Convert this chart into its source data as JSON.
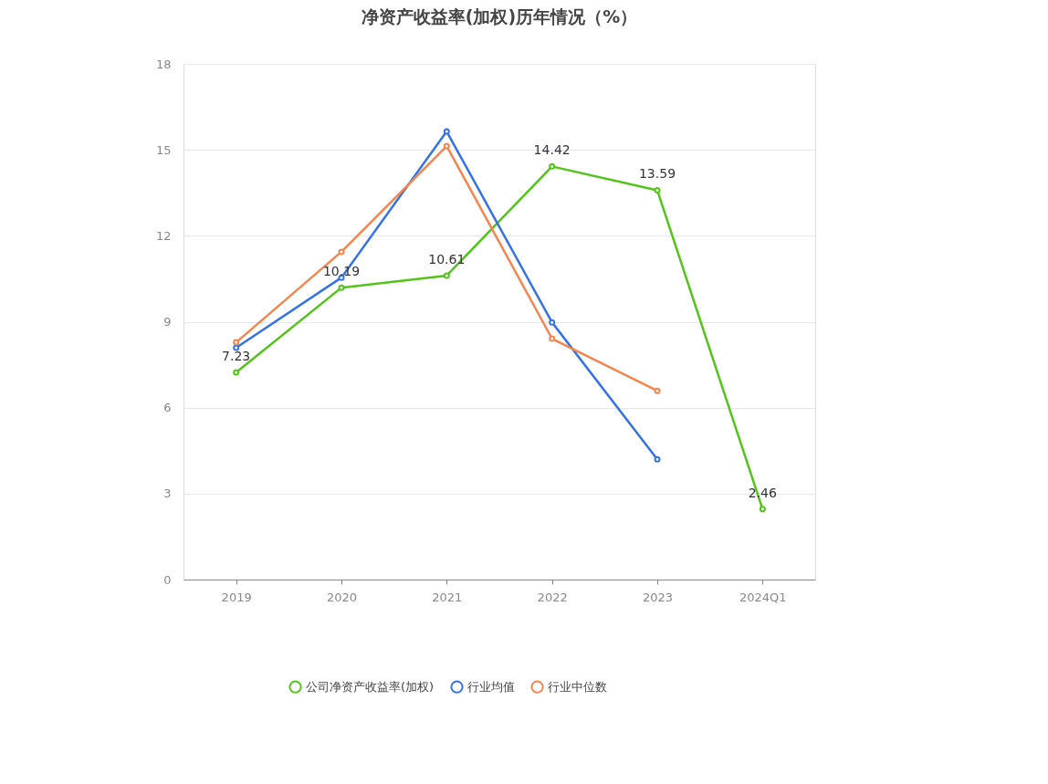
{
  "chart_data": {
    "type": "line",
    "title": "净资产收益率(加权)历年情况（%）",
    "categories": [
      "2019",
      "2020",
      "2021",
      "2022",
      "2023",
      "2024Q1"
    ],
    "series": [
      {
        "name": "公司净资产收益率(加权)",
        "color": "#52c41a",
        "values": [
          7.23,
          10.19,
          10.61,
          14.42,
          13.59,
          2.46
        ],
        "value_labels": [
          "7.23",
          "10.19",
          "10.61",
          "14.42",
          "13.59",
          "2.46"
        ]
      },
      {
        "name": "行业均值",
        "color": "#3573e6",
        "values": [
          8.09,
          10.54,
          15.64,
          8.98,
          4.2,
          null
        ]
      },
      {
        "name": "行业中位数",
        "color": "#f5854f",
        "values": [
          8.28,
          11.44,
          15.13,
          8.41,
          6.59,
          null
        ]
      }
    ],
    "ylim": [
      0,
      18
    ],
    "yticks": [
      0,
      3,
      6,
      9,
      12,
      15,
      18
    ],
    "grid": "y",
    "legend": "bottom",
    "marker": "circle",
    "line_style": "solid"
  }
}
